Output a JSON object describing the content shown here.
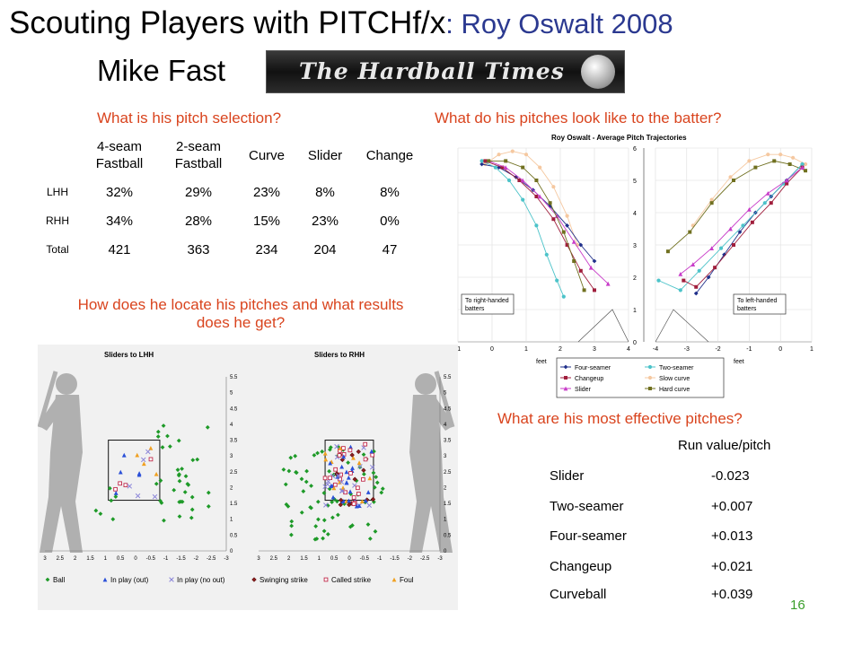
{
  "title": {
    "main": "Scouting Players with PITCHf/x",
    "sub": ": Roy Oswalt 2008"
  },
  "author": "Mike Fast",
  "logo": {
    "text": "The Hardball Times"
  },
  "selection": {
    "question": "What is his pitch selection?",
    "headers": [
      "4-seam Fastball",
      "2-seam Fastball",
      "Curve",
      "Slider",
      "Change"
    ],
    "rows": [
      {
        "label": "LHH",
        "values": [
          "32%",
          "29%",
          "23%",
          "8%",
          "8%"
        ]
      },
      {
        "label": "RHH",
        "values": [
          "34%",
          "28%",
          "15%",
          "23%",
          "0%"
        ]
      },
      {
        "label": "Total",
        "values": [
          "421",
          "363",
          "234",
          "204",
          "47"
        ]
      }
    ]
  },
  "trajectory": {
    "question": "What do his pitches look like to the batter?",
    "chart_title": "Roy Oswalt - Average Pitch Trajectories",
    "left_note": "To right-handed batters",
    "right_note": "To left-handed batters",
    "x_ticks_left": [
      "-1",
      "0",
      "1",
      "2",
      "3",
      "4"
    ],
    "x_ticks_right": [
      "-4",
      "-3",
      "-2",
      "-1",
      "0",
      "1"
    ],
    "y_ticks": [
      "0",
      "1",
      "2",
      "3",
      "4",
      "5",
      "6"
    ],
    "unit": "feet",
    "legend": [
      "Four-seamer",
      "Two-seamer",
      "Changeup",
      "Slow curve",
      "Slider",
      "Hard curve"
    ],
    "colors": {
      "Four-seamer": "#1f2f8a",
      "Two-seamer": "#4cc3c9",
      "Changeup": "#a01e3c",
      "Slow curve": "#f5c8a0",
      "Slider": "#c83cc8",
      "Hard curve": "#707020"
    }
  },
  "location": {
    "question": "How does he locate his pitches and what results does he get?",
    "left_title": "Sliders to LHH",
    "right_title": "Sliders to RHH",
    "x_ticks": [
      "3",
      "2.5",
      "2",
      "1.5",
      "1",
      "0.5",
      "0",
      "-0.5",
      "-1",
      "-1.5",
      "-2",
      "-2.5",
      "-3"
    ],
    "y_ticks": [
      "0",
      "0.5",
      "1",
      "1.5",
      "2",
      "2.5",
      "3",
      "3.5",
      "4",
      "4.5",
      "5",
      "5.5"
    ],
    "legend": [
      "Ball",
      "In play (out)",
      "In play (no out)",
      "Swinging strike",
      "Called strike",
      "Foul"
    ],
    "colors": {
      "Ball": "#1e9a28",
      "In play (out)": "#2a4fd8",
      "In play (no out)": "#8a84d8",
      "Swinging strike": "#8a1e1e",
      "Called strike": "#c02a4a",
      "Foul": "#f0a020"
    }
  },
  "effectiveness": {
    "question": "What are his most effective pitches?",
    "header": "Run value/pitch",
    "rows": [
      {
        "name": "Slider",
        "value": "-0.023"
      },
      {
        "name": "Two-seamer",
        "value": "+0.007"
      },
      {
        "name": "Four-seamer",
        "value": "+0.013"
      },
      {
        "name": "Changeup",
        "value": "+0.021"
      },
      {
        "name": "Curveball",
        "value": "+0.039"
      }
    ]
  },
  "page_number": "16"
}
